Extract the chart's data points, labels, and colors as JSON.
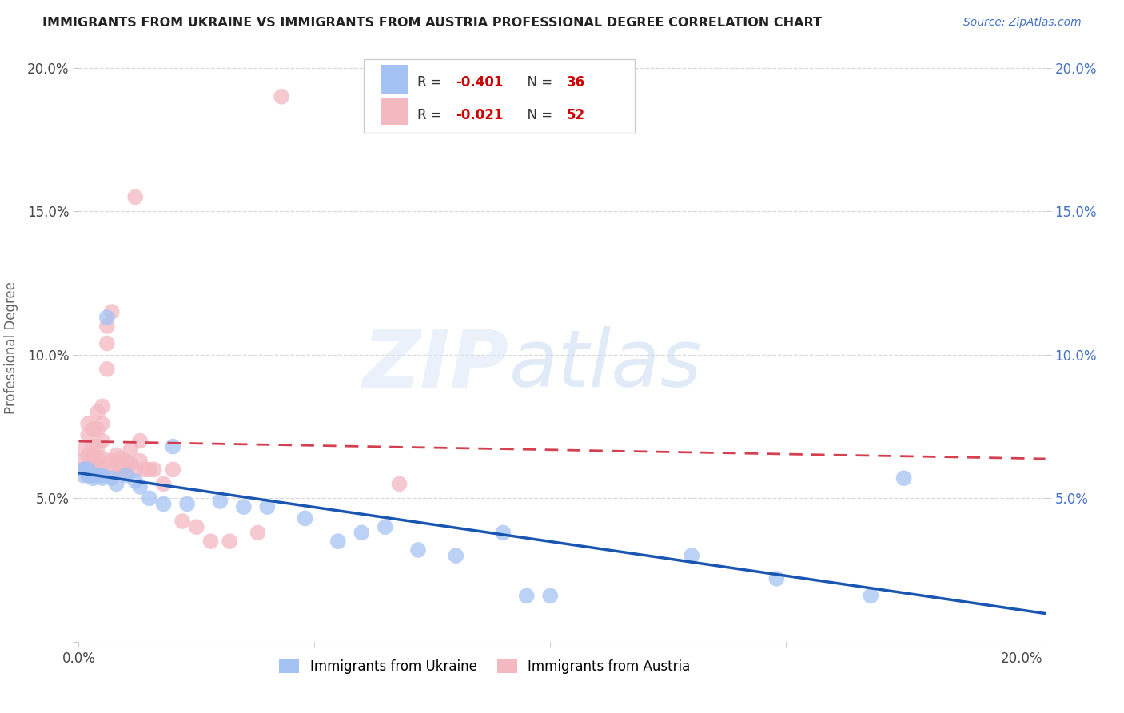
{
  "title": "IMMIGRANTS FROM UKRAINE VS IMMIGRANTS FROM AUSTRIA PROFESSIONAL DEGREE CORRELATION CHART",
  "source": "Source: ZipAtlas.com",
  "ylabel": "Professional Degree",
  "xlim": [
    0.0,
    0.205
  ],
  "ylim": [
    0.0,
    0.205
  ],
  "ukraine_color": "#a4c2f4",
  "austria_color": "#f4b8c1",
  "ukraine_label": "Immigrants from Ukraine",
  "austria_label": "Immigrants from Austria",
  "ukraine_R": -0.401,
  "ukraine_N": 36,
  "austria_R": -0.021,
  "austria_N": 52,
  "ukraine_line_color": "#1a56b0",
  "austria_line_color": "#d44050",
  "background_color": "#ffffff",
  "grid_color": "#d8d8d8",
  "ukraine_x": [
    0.001,
    0.001,
    0.0015,
    0.002,
    0.002,
    0.003,
    0.003,
    0.004,
    0.005,
    0.005,
    0.006,
    0.007,
    0.008,
    0.01,
    0.012,
    0.013,
    0.015,
    0.018,
    0.02,
    0.023,
    0.03,
    0.035,
    0.04,
    0.048,
    0.055,
    0.06,
    0.065,
    0.072,
    0.08,
    0.09,
    0.095,
    0.1,
    0.13,
    0.148,
    0.168,
    0.175
  ],
  "ukraine_y": [
    0.06,
    0.058,
    0.06,
    0.06,
    0.058,
    0.058,
    0.057,
    0.058,
    0.058,
    0.057,
    0.113,
    0.057,
    0.055,
    0.058,
    0.056,
    0.054,
    0.05,
    0.048,
    0.068,
    0.048,
    0.049,
    0.047,
    0.047,
    0.043,
    0.035,
    0.038,
    0.04,
    0.032,
    0.03,
    0.038,
    0.016,
    0.016,
    0.03,
    0.022,
    0.016,
    0.057
  ],
  "austria_x": [
    0.001,
    0.001,
    0.001,
    0.002,
    0.002,
    0.002,
    0.002,
    0.002,
    0.003,
    0.003,
    0.003,
    0.003,
    0.004,
    0.004,
    0.004,
    0.004,
    0.004,
    0.005,
    0.005,
    0.005,
    0.005,
    0.005,
    0.006,
    0.006,
    0.006,
    0.007,
    0.007,
    0.007,
    0.008,
    0.008,
    0.009,
    0.009,
    0.01,
    0.01,
    0.011,
    0.011,
    0.012,
    0.012,
    0.013,
    0.013,
    0.014,
    0.015,
    0.016,
    0.018,
    0.02,
    0.022,
    0.025,
    0.028,
    0.032,
    0.038,
    0.043,
    0.068
  ],
  "austria_y": [
    0.06,
    0.063,
    0.067,
    0.058,
    0.061,
    0.065,
    0.072,
    0.076,
    0.06,
    0.064,
    0.068,
    0.074,
    0.061,
    0.064,
    0.068,
    0.074,
    0.08,
    0.061,
    0.064,
    0.07,
    0.076,
    0.082,
    0.095,
    0.104,
    0.11,
    0.06,
    0.063,
    0.115,
    0.062,
    0.065,
    0.06,
    0.064,
    0.059,
    0.063,
    0.062,
    0.067,
    0.06,
    0.155,
    0.063,
    0.07,
    0.06,
    0.06,
    0.06,
    0.055,
    0.06,
    0.042,
    0.04,
    0.035,
    0.035,
    0.038,
    0.19,
    0.055
  ]
}
